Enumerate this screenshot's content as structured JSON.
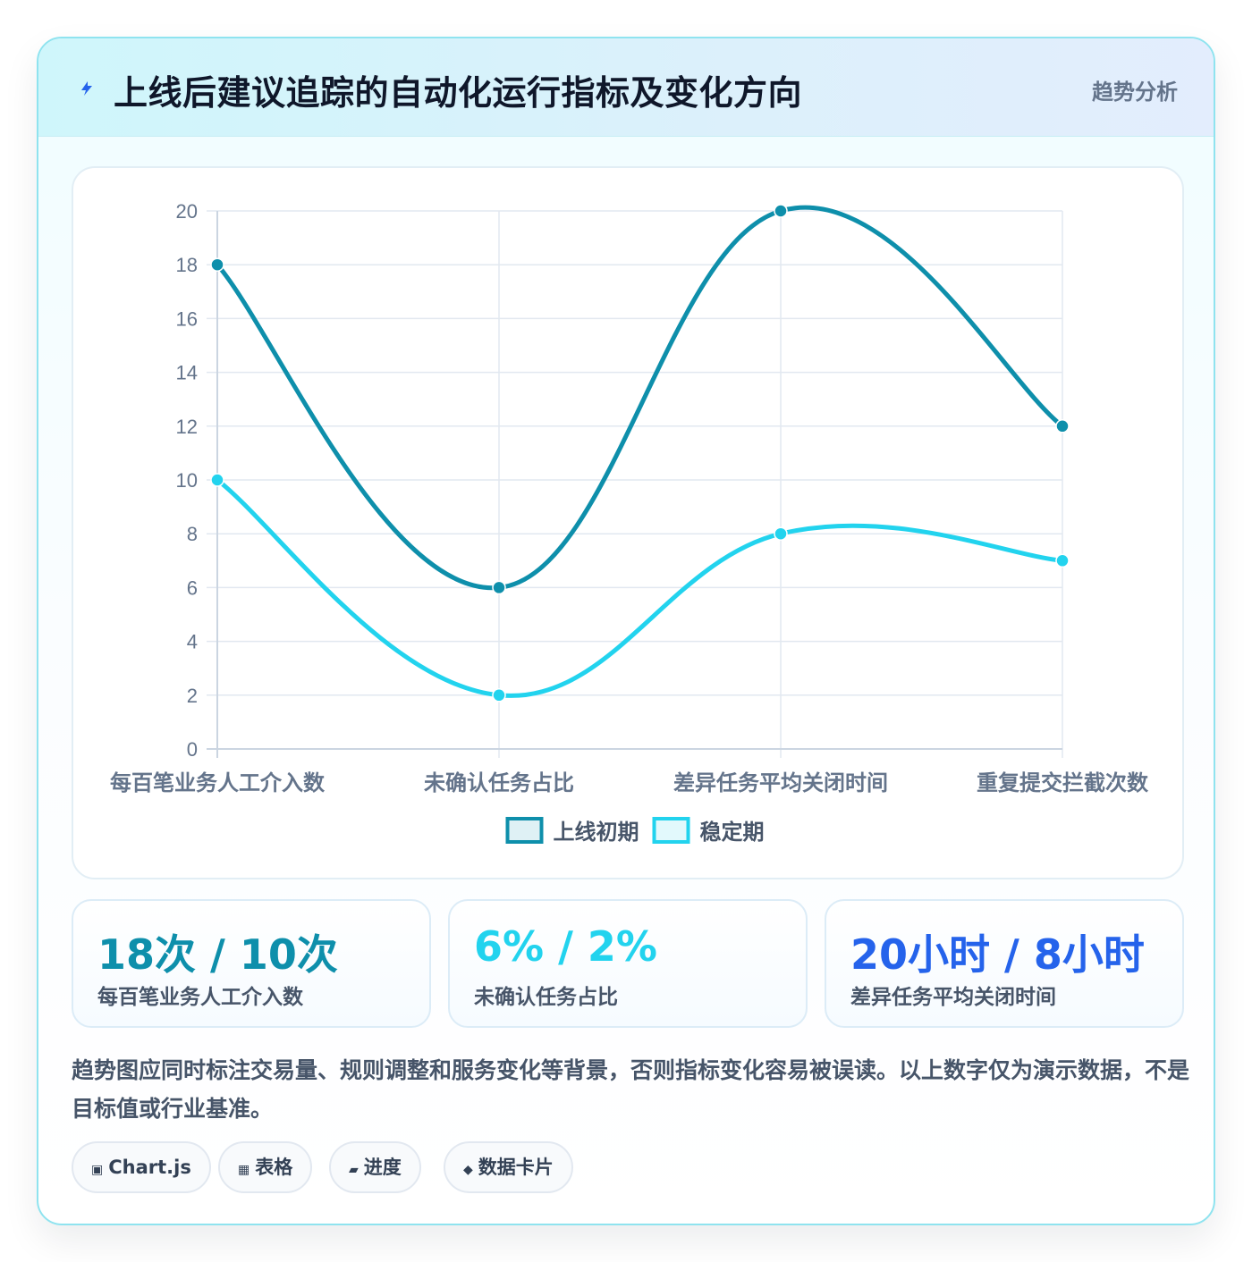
{
  "header": {
    "title": "上线后建议追踪的自动化运行指标及变化方向",
    "tag": "趋势分析",
    "icon": "lightning-icon",
    "icon_color": "#2563eb"
  },
  "chart_data": {
    "type": "line",
    "categories": [
      "每百笔业务人工介入数",
      "未确认任务占比",
      "差异任务平均关闭时间",
      "重复提交拦截次数"
    ],
    "series": [
      {
        "name": "上线初期",
        "values": [
          18,
          6,
          20,
          12
        ],
        "color": "#0e8fab",
        "fill": "#dff1f5"
      },
      {
        "name": "稳定期",
        "values": [
          10,
          2,
          8,
          7
        ],
        "color": "#22d3ee",
        "fill": "#e2f9fc"
      }
    ],
    "title": "",
    "xlabel": "",
    "ylabel": "",
    "ylim": [
      0,
      20
    ],
    "yticks": [
      "0",
      "2",
      "4",
      "6",
      "8",
      "10",
      "12",
      "14",
      "16",
      "18",
      "20"
    ],
    "grid": true,
    "legend": "bottom",
    "smooth": true
  },
  "stats": [
    {
      "value": "18次 / 10次",
      "label": "每百笔业务人工介入数",
      "color": "#0e8fab"
    },
    {
      "value": "6% / 2%",
      "label": "未确认任务占比",
      "color": "#22d3ee"
    },
    {
      "value": "20小时 / 8小时",
      "label": "差异任务平均关闭时间",
      "color": "#2563eb"
    }
  ],
  "note": "趋势图应同时标注交易量、规则调整和服务变化等背景，否则指标变化容易被误读。以上数字仅为演示数据，不是目标值或行业基准。",
  "tags": [
    {
      "glyph": "▣",
      "label": "Chart.js",
      "icon": "chip-icon"
    },
    {
      "glyph": "▦",
      "label": "表格",
      "icon": "table-icon"
    },
    {
      "glyph": "▰",
      "label": "进度",
      "icon": "progress-icon"
    },
    {
      "glyph": "◆",
      "label": "数据卡片",
      "icon": "diamond-icon"
    }
  ]
}
